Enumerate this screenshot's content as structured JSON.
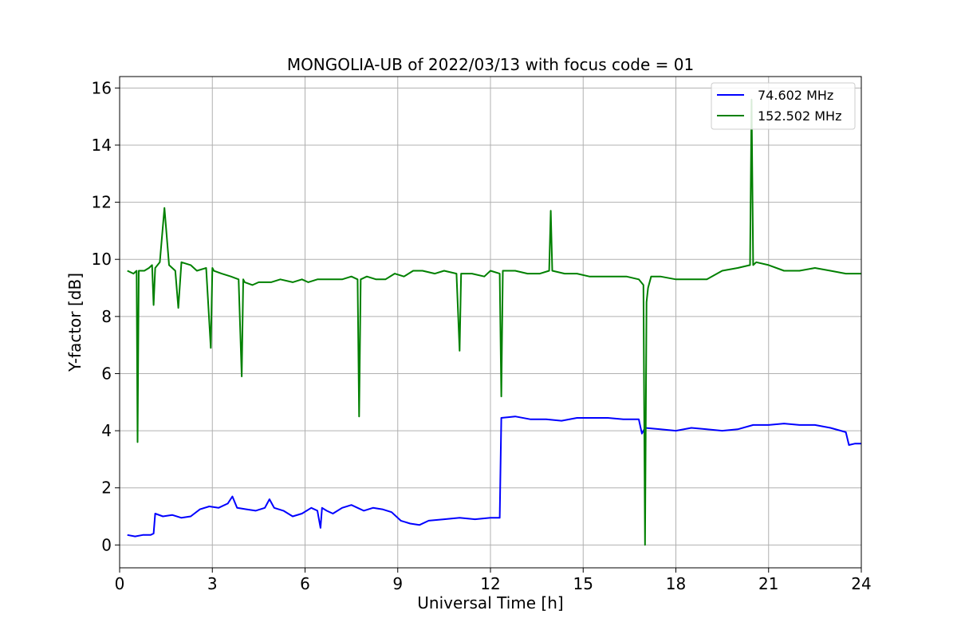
{
  "chart_data": {
    "type": "line",
    "title": "MONGOLIA-UB of 2022/03/13 with focus code = 01",
    "xlabel": "Universal Time [h]",
    "ylabel": "Y-factor [dB]",
    "xlim": [
      0,
      24
    ],
    "ylim": [
      -0.8,
      16.4
    ],
    "xticks": [
      0,
      3,
      6,
      9,
      12,
      15,
      18,
      21,
      24
    ],
    "yticks": [
      0,
      2,
      4,
      6,
      8,
      10,
      12,
      14,
      16
    ],
    "grid": true,
    "legend_position": "top-right",
    "series": [
      {
        "name": "  74.602 MHz",
        "color": "#0000ff",
        "x": [
          0.25,
          0.5,
          0.75,
          1.0,
          1.1,
          1.15,
          1.4,
          1.7,
          2.0,
          2.3,
          2.6,
          2.9,
          3.2,
          3.5,
          3.65,
          3.8,
          4.1,
          4.4,
          4.7,
          4.85,
          5.0,
          5.3,
          5.6,
          5.9,
          6.2,
          6.4,
          6.5,
          6.55,
          6.7,
          6.9,
          7.2,
          7.5,
          7.7,
          7.9,
          8.2,
          8.5,
          8.8,
          9.1,
          9.4,
          9.7,
          10.0,
          10.5,
          11.0,
          11.5,
          12.0,
          12.3,
          12.35,
          12.8,
          13.3,
          13.8,
          14.3,
          14.8,
          15.3,
          15.8,
          16.3,
          16.8,
          16.9,
          17.0,
          17.5,
          18.0,
          18.5,
          19.0,
          19.5,
          20.0,
          20.5,
          21.0,
          21.5,
          22.0,
          22.5,
          23.0,
          23.5,
          23.6,
          23.8,
          24.0
        ],
        "y": [
          0.35,
          0.3,
          0.35,
          0.35,
          0.4,
          1.1,
          1.0,
          1.05,
          0.95,
          1.0,
          1.25,
          1.35,
          1.3,
          1.45,
          1.7,
          1.3,
          1.25,
          1.2,
          1.3,
          1.6,
          1.3,
          1.2,
          1.0,
          1.1,
          1.3,
          1.2,
          0.6,
          1.3,
          1.2,
          1.1,
          1.3,
          1.4,
          1.3,
          1.2,
          1.3,
          1.25,
          1.15,
          0.85,
          0.75,
          0.7,
          0.85,
          0.9,
          0.95,
          0.9,
          0.95,
          0.95,
          4.45,
          4.5,
          4.4,
          4.4,
          4.35,
          4.45,
          4.45,
          4.45,
          4.4,
          4.4,
          3.9,
          4.1,
          4.05,
          4.0,
          4.1,
          4.05,
          4.0,
          4.05,
          4.2,
          4.2,
          4.25,
          4.2,
          4.2,
          4.1,
          3.95,
          3.5,
          3.55,
          3.55
        ]
      },
      {
        "name": "152.502 MHz",
        "color": "#008000",
        "x": [
          0.25,
          0.45,
          0.55,
          0.58,
          0.62,
          0.8,
          0.95,
          1.05,
          1.1,
          1.15,
          1.3,
          1.45,
          1.6,
          1.8,
          1.9,
          2.0,
          2.3,
          2.5,
          2.8,
          2.95,
          3.0,
          3.05,
          3.3,
          3.6,
          3.85,
          3.95,
          4.0,
          4.05,
          4.3,
          4.5,
          4.9,
          5.2,
          5.6,
          5.9,
          6.1,
          6.4,
          6.8,
          7.2,
          7.5,
          7.7,
          7.75,
          7.8,
          8.0,
          8.3,
          8.6,
          8.9,
          9.2,
          9.5,
          9.8,
          10.2,
          10.5,
          10.9,
          11.0,
          11.05,
          11.4,
          11.8,
          12.0,
          12.3,
          12.35,
          12.4,
          12.8,
          13.2,
          13.6,
          13.9,
          13.95,
          14.0,
          14.4,
          14.8,
          15.2,
          15.6,
          16.0,
          16.4,
          16.8,
          16.95,
          17.0,
          17.05,
          17.1,
          17.2,
          17.5,
          18.0,
          18.5,
          19.0,
          19.5,
          20.0,
          20.4,
          20.45,
          20.5,
          20.6,
          21.0,
          21.5,
          22.0,
          22.5,
          23.0,
          23.5,
          24.0
        ],
        "y": [
          9.6,
          9.5,
          9.6,
          3.6,
          9.6,
          9.6,
          9.7,
          9.8,
          8.4,
          9.7,
          9.9,
          11.8,
          9.8,
          9.6,
          8.3,
          9.9,
          9.8,
          9.6,
          9.7,
          6.9,
          9.7,
          9.6,
          9.5,
          9.4,
          9.3,
          5.9,
          9.3,
          9.2,
          9.1,
          9.2,
          9.2,
          9.3,
          9.2,
          9.3,
          9.2,
          9.3,
          9.3,
          9.3,
          9.4,
          9.3,
          4.5,
          9.3,
          9.4,
          9.3,
          9.3,
          9.5,
          9.4,
          9.6,
          9.6,
          9.5,
          9.6,
          9.5,
          6.8,
          9.5,
          9.5,
          9.4,
          9.6,
          9.5,
          5.2,
          9.6,
          9.6,
          9.5,
          9.5,
          9.6,
          11.7,
          9.6,
          9.5,
          9.5,
          9.4,
          9.4,
          9.4,
          9.4,
          9.3,
          9.1,
          0.0,
          8.5,
          9.0,
          9.4,
          9.4,
          9.3,
          9.3,
          9.3,
          9.6,
          9.7,
          9.8,
          15.6,
          9.8,
          9.9,
          9.8,
          9.6,
          9.6,
          9.7,
          9.6,
          9.5,
          9.5
        ]
      }
    ]
  }
}
